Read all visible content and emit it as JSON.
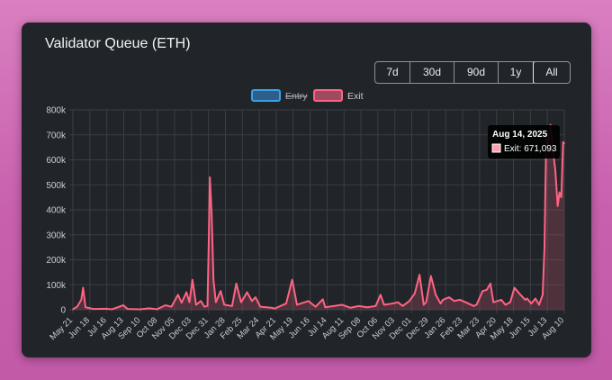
{
  "card": {
    "title": "Validator Queue (ETH)"
  },
  "range_buttons": [
    {
      "label": "7d",
      "active": false
    },
    {
      "label": "30d",
      "active": false
    },
    {
      "label": "90d",
      "active": false
    },
    {
      "label": "1y",
      "active": false
    },
    {
      "label": "All",
      "active": true
    }
  ],
  "colors": {
    "entry_border": "#36a2eb",
    "entry_fill": "#2f5f88",
    "exit_border": "#ff6384",
    "exit_fill": "#a04a5f",
    "grid": "#3a3f45",
    "text": "#c9cdd2",
    "tooltip_bg": "#000000"
  },
  "tooltip": {
    "title": "Aug 14, 2025",
    "label": "Exit: 671,093"
  },
  "chart_data": {
    "type": "line",
    "title": "",
    "xlabel": "",
    "ylabel": "",
    "ylim": [
      0,
      800000
    ],
    "yticks": [
      0,
      100000,
      200000,
      300000,
      400000,
      500000,
      600000,
      700000,
      800000
    ],
    "ytick_labels": [
      "0",
      "100k",
      "200k",
      "300k",
      "400k",
      "500k",
      "600k",
      "700k",
      "800k"
    ],
    "grid": true,
    "legend_position": "top",
    "x_tick_labels": [
      "May 21",
      "Jun 18",
      "Jul 16",
      "Aug 13",
      "Sep 10",
      "Oct 08",
      "Nov 05",
      "Dec 03",
      "Dec 31",
      "Jan 28",
      "Feb 25",
      "Mar 24",
      "Apr 21",
      "May 19",
      "Jun 16",
      "Jul 14",
      "Aug 11",
      "Sep 08",
      "Oct 06",
      "Nov 03",
      "Dec 01",
      "Dec 29",
      "Jan 26",
      "Feb 23",
      "Mar 23",
      "Apr 20",
      "May 18",
      "Jun 15",
      "Jul 13",
      "Aug 10"
    ],
    "series": [
      {
        "name": "Entry",
        "hidden": true,
        "points": []
      },
      {
        "name": "Exit",
        "hidden": false,
        "points": [
          [
            "2023-05-21",
            2000
          ],
          [
            "2023-05-28",
            12000
          ],
          [
            "2023-06-04",
            40000
          ],
          [
            "2023-06-07",
            88000
          ],
          [
            "2023-06-11",
            10000
          ],
          [
            "2023-06-25",
            3000
          ],
          [
            "2023-07-16",
            4000
          ],
          [
            "2023-07-25",
            2000
          ],
          [
            "2023-08-13",
            18000
          ],
          [
            "2023-08-20",
            3000
          ],
          [
            "2023-09-10",
            2000
          ],
          [
            "2023-09-25",
            6000
          ],
          [
            "2023-10-08",
            2000
          ],
          [
            "2023-10-22",
            18000
          ],
          [
            "2023-11-01",
            12000
          ],
          [
            "2023-11-12",
            60000
          ],
          [
            "2023-11-18",
            28000
          ],
          [
            "2023-11-26",
            70000
          ],
          [
            "2023-12-01",
            30000
          ],
          [
            "2023-12-06",
            120000
          ],
          [
            "2023-12-12",
            20000
          ],
          [
            "2023-12-20",
            35000
          ],
          [
            "2023-12-26",
            12000
          ],
          [
            "2023-12-31",
            15000
          ],
          [
            "2024-01-02",
            250000
          ],
          [
            "2024-01-04",
            530000
          ],
          [
            "2024-01-07",
            380000
          ],
          [
            "2024-01-10",
            120000
          ],
          [
            "2024-01-14",
            30000
          ],
          [
            "2024-01-22",
            75000
          ],
          [
            "2024-01-28",
            20000
          ],
          [
            "2024-02-10",
            15000
          ],
          [
            "2024-02-17",
            105000
          ],
          [
            "2024-02-25",
            30000
          ],
          [
            "2024-03-06",
            70000
          ],
          [
            "2024-03-14",
            35000
          ],
          [
            "2024-03-20",
            50000
          ],
          [
            "2024-03-28",
            12000
          ],
          [
            "2024-04-15",
            8000
          ],
          [
            "2024-04-21",
            5000
          ],
          [
            "2024-05-10",
            25000
          ],
          [
            "2024-05-20",
            120000
          ],
          [
            "2024-05-28",
            20000
          ],
          [
            "2024-06-16",
            35000
          ],
          [
            "2024-06-28",
            12000
          ],
          [
            "2024-07-10",
            42000
          ],
          [
            "2024-07-14",
            10000
          ],
          [
            "2024-08-11",
            20000
          ],
          [
            "2024-08-25",
            8000
          ],
          [
            "2024-09-08",
            15000
          ],
          [
            "2024-09-22",
            10000
          ],
          [
            "2024-10-06",
            15000
          ],
          [
            "2024-10-14",
            60000
          ],
          [
            "2024-10-20",
            20000
          ],
          [
            "2024-11-03",
            25000
          ],
          [
            "2024-11-12",
            30000
          ],
          [
            "2024-11-20",
            15000
          ],
          [
            "2024-12-01",
            35000
          ],
          [
            "2024-12-10",
            65000
          ],
          [
            "2024-12-18",
            140000
          ],
          [
            "2024-12-25",
            20000
          ],
          [
            "2024-12-29",
            30000
          ],
          [
            "2025-01-06",
            135000
          ],
          [
            "2025-01-14",
            60000
          ],
          [
            "2025-01-22",
            25000
          ],
          [
            "2025-01-26",
            40000
          ],
          [
            "2025-02-05",
            50000
          ],
          [
            "2025-02-14",
            35000
          ],
          [
            "2025-02-23",
            40000
          ],
          [
            "2025-03-05",
            30000
          ],
          [
            "2025-03-18",
            15000
          ],
          [
            "2025-03-23",
            20000
          ],
          [
            "2025-04-02",
            75000
          ],
          [
            "2025-04-09",
            80000
          ],
          [
            "2025-04-15",
            105000
          ],
          [
            "2025-04-20",
            30000
          ],
          [
            "2025-05-03",
            40000
          ],
          [
            "2025-05-10",
            20000
          ],
          [
            "2025-05-18",
            30000
          ],
          [
            "2025-05-25",
            88000
          ],
          [
            "2025-06-04",
            60000
          ],
          [
            "2025-06-12",
            40000
          ],
          [
            "2025-06-15",
            45000
          ],
          [
            "2025-06-22",
            25000
          ],
          [
            "2025-06-29",
            45000
          ],
          [
            "2025-07-05",
            20000
          ],
          [
            "2025-07-11",
            60000
          ],
          [
            "2025-07-14",
            250000
          ],
          [
            "2025-07-17",
            700000
          ],
          [
            "2025-07-20",
            660000
          ],
          [
            "2025-07-24",
            740000
          ],
          [
            "2025-07-28",
            640000
          ],
          [
            "2025-08-01",
            560000
          ],
          [
            "2025-08-05",
            415000
          ],
          [
            "2025-08-08",
            470000
          ],
          [
            "2025-08-11",
            450000
          ],
          [
            "2025-08-14",
            671093
          ],
          [
            "2025-08-16",
            665000
          ]
        ]
      }
    ]
  }
}
